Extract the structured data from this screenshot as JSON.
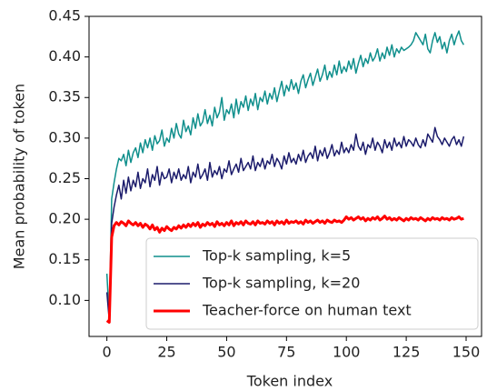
{
  "chart_data": {
    "type": "line",
    "xlabel": "Token index",
    "ylabel": "Mean probability of token",
    "x": [
      0,
      1,
      2,
      3,
      4,
      5,
      6,
      7,
      8,
      9,
      10,
      11,
      12,
      13,
      14,
      15,
      16,
      17,
      18,
      19,
      20,
      21,
      22,
      23,
      24,
      25,
      26,
      27,
      28,
      29,
      30,
      31,
      32,
      33,
      34,
      35,
      36,
      37,
      38,
      39,
      40,
      41,
      42,
      43,
      44,
      45,
      46,
      47,
      48,
      49,
      50,
      51,
      52,
      53,
      54,
      55,
      56,
      57,
      58,
      59,
      60,
      61,
      62,
      63,
      64,
      65,
      66,
      67,
      68,
      69,
      70,
      71,
      72,
      73,
      74,
      75,
      76,
      77,
      78,
      79,
      80,
      81,
      82,
      83,
      84,
      85,
      86,
      87,
      88,
      89,
      90,
      91,
      92,
      93,
      94,
      95,
      96,
      97,
      98,
      99,
      100,
      101,
      102,
      103,
      104,
      105,
      106,
      107,
      108,
      109,
      110,
      111,
      112,
      113,
      114,
      115,
      116,
      117,
      118,
      119,
      120,
      121,
      122,
      123,
      124,
      125,
      126,
      127,
      128,
      129,
      130,
      131,
      132,
      133,
      134,
      135,
      136,
      137,
      138,
      139,
      140,
      141,
      142,
      143,
      144,
      145,
      146,
      147,
      148,
      149
    ],
    "series": [
      {
        "name": "Top-k sampling, k=5",
        "color": "#0f8f8c",
        "width": 1.5,
        "values": [
          0.133,
          0.078,
          0.225,
          0.245,
          0.262,
          0.275,
          0.272,
          0.28,
          0.266,
          0.285,
          0.27,
          0.282,
          0.288,
          0.276,
          0.294,
          0.282,
          0.298,
          0.288,
          0.3,
          0.285,
          0.303,
          0.293,
          0.297,
          0.31,
          0.29,
          0.3,
          0.295,
          0.312,
          0.3,
          0.318,
          0.305,
          0.3,
          0.322,
          0.308,
          0.315,
          0.304,
          0.325,
          0.312,
          0.33,
          0.315,
          0.32,
          0.335,
          0.318,
          0.328,
          0.315,
          0.338,
          0.325,
          0.332,
          0.35,
          0.322,
          0.335,
          0.33,
          0.342,
          0.325,
          0.348,
          0.33,
          0.345,
          0.338,
          0.352,
          0.334,
          0.348,
          0.34,
          0.355,
          0.335,
          0.35,
          0.345,
          0.358,
          0.342,
          0.355,
          0.348,
          0.362,
          0.345,
          0.358,
          0.37,
          0.352,
          0.365,
          0.358,
          0.372,
          0.36,
          0.368,
          0.355,
          0.37,
          0.378,
          0.362,
          0.372,
          0.38,
          0.365,
          0.375,
          0.385,
          0.37,
          0.378,
          0.39,
          0.372,
          0.382,
          0.375,
          0.39,
          0.378,
          0.395,
          0.38,
          0.388,
          0.382,
          0.395,
          0.385,
          0.398,
          0.38,
          0.392,
          0.402,
          0.388,
          0.398,
          0.392,
          0.405,
          0.395,
          0.4,
          0.41,
          0.395,
          0.405,
          0.398,
          0.412,
          0.402,
          0.415,
          0.4,
          0.41,
          0.405,
          0.412,
          0.408,
          0.41,
          0.412,
          0.415,
          0.42,
          0.43,
          0.425,
          0.42,
          0.415,
          0.428,
          0.41,
          0.405,
          0.42,
          0.43,
          0.418,
          0.425,
          0.41,
          0.418,
          0.405,
          0.42,
          0.428,
          0.415,
          0.425,
          0.432,
          0.42,
          0.415
        ]
      },
      {
        "name": "Top-k sampling, k=20",
        "color": "#1b1b6b",
        "width": 1.5,
        "values": [
          0.11,
          0.075,
          0.195,
          0.215,
          0.23,
          0.242,
          0.225,
          0.248,
          0.232,
          0.252,
          0.235,
          0.248,
          0.24,
          0.258,
          0.238,
          0.25,
          0.245,
          0.262,
          0.24,
          0.255,
          0.248,
          0.265,
          0.242,
          0.258,
          0.25,
          0.252,
          0.262,
          0.245,
          0.258,
          0.25,
          0.262,
          0.248,
          0.255,
          0.25,
          0.265,
          0.245,
          0.258,
          0.252,
          0.268,
          0.25,
          0.255,
          0.262,
          0.248,
          0.27,
          0.252,
          0.26,
          0.255,
          0.265,
          0.25,
          0.262,
          0.258,
          0.272,
          0.255,
          0.262,
          0.268,
          0.258,
          0.275,
          0.26,
          0.265,
          0.27,
          0.262,
          0.278,
          0.26,
          0.27,
          0.265,
          0.275,
          0.262,
          0.272,
          0.268,
          0.28,
          0.265,
          0.275,
          0.27,
          0.262,
          0.278,
          0.268,
          0.282,
          0.27,
          0.275,
          0.268,
          0.28,
          0.272,
          0.285,
          0.27,
          0.278,
          0.282,
          0.275,
          0.29,
          0.272,
          0.285,
          0.278,
          0.288,
          0.275,
          0.282,
          0.292,
          0.278,
          0.285,
          0.28,
          0.295,
          0.282,
          0.288,
          0.282,
          0.292,
          0.285,
          0.305,
          0.29,
          0.285,
          0.295,
          0.28,
          0.292,
          0.288,
          0.3,
          0.285,
          0.295,
          0.29,
          0.282,
          0.298,
          0.288,
          0.295,
          0.285,
          0.3,
          0.29,
          0.295,
          0.288,
          0.302,
          0.29,
          0.298,
          0.295,
          0.29,
          0.3,
          0.292,
          0.288,
          0.298,
          0.29,
          0.305,
          0.3,
          0.295,
          0.313,
          0.302,
          0.298,
          0.292,
          0.3,
          0.295,
          0.29,
          0.298,
          0.302,
          0.292,
          0.298,
          0.29,
          0.302
        ]
      },
      {
        "name": "Teacher-force on human text",
        "color": "#ff0000",
        "width": 3,
        "values": [
          0.075,
          0.073,
          0.178,
          0.192,
          0.196,
          0.193,
          0.197,
          0.195,
          0.192,
          0.198,
          0.195,
          0.193,
          0.196,
          0.192,
          0.195,
          0.19,
          0.194,
          0.192,
          0.188,
          0.193,
          0.187,
          0.19,
          0.184,
          0.189,
          0.186,
          0.191,
          0.188,
          0.186,
          0.19,
          0.188,
          0.192,
          0.189,
          0.193,
          0.19,
          0.194,
          0.191,
          0.195,
          0.192,
          0.196,
          0.19,
          0.194,
          0.192,
          0.196,
          0.193,
          0.195,
          0.191,
          0.197,
          0.193,
          0.195,
          0.192,
          0.196,
          0.193,
          0.198,
          0.192,
          0.196,
          0.194,
          0.197,
          0.193,
          0.198,
          0.195,
          0.194,
          0.197,
          0.193,
          0.198,
          0.195,
          0.196,
          0.194,
          0.198,
          0.195,
          0.197,
          0.193,
          0.198,
          0.195,
          0.197,
          0.194,
          0.199,
          0.195,
          0.197,
          0.196,
          0.198,
          0.195,
          0.197,
          0.194,
          0.199,
          0.196,
          0.198,
          0.195,
          0.197,
          0.199,
          0.196,
          0.198,
          0.195,
          0.199,
          0.197,
          0.196,
          0.199,
          0.197,
          0.198,
          0.196,
          0.199,
          0.203,
          0.2,
          0.202,
          0.199,
          0.201,
          0.203,
          0.2,
          0.202,
          0.198,
          0.201,
          0.199,
          0.202,
          0.2,
          0.203,
          0.199,
          0.201,
          0.204,
          0.2,
          0.202,
          0.199,
          0.201,
          0.199,
          0.202,
          0.2,
          0.198,
          0.201,
          0.199,
          0.202,
          0.2,
          0.201,
          0.199,
          0.202,
          0.2,
          0.198,
          0.201,
          0.199,
          0.202,
          0.2,
          0.201,
          0.199,
          0.202,
          0.2,
          0.201,
          0.199,
          0.202,
          0.2,
          0.201,
          0.203,
          0.2,
          0.201
        ]
      }
    ],
    "xlim": [
      -7.45,
      156.45
    ],
    "ylim": [
      0.0556,
      0.45
    ],
    "xticks": [
      0,
      25,
      50,
      75,
      100,
      125,
      150
    ],
    "yticks": [
      {
        "value": 0.1,
        "label": "0.10"
      },
      0.15,
      {
        "value": 0.2,
        "label": "0.20"
      },
      0.25,
      {
        "value": 0.3,
        "label": "0.30"
      },
      0.35,
      {
        "value": 0.4,
        "label": "0.40"
      },
      0.45
    ],
    "legend": "lower right",
    "grid": false
  }
}
